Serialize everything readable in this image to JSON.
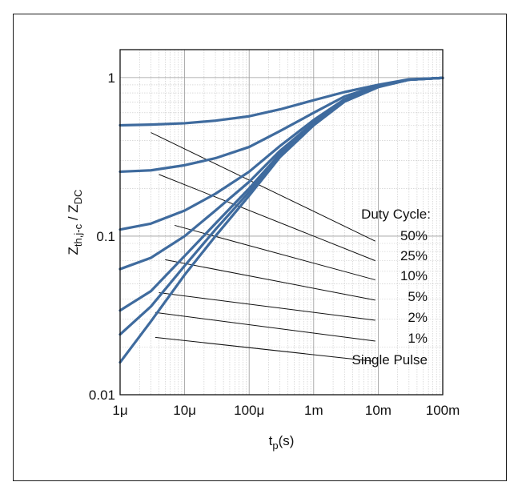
{
  "chart_data": {
    "type": "line",
    "xscale": "log",
    "yscale": "log",
    "xlim": [
      1e-06,
      0.1
    ],
    "ylim": [
      0.01,
      1.5
    ],
    "grid": true,
    "xlabel": {
      "main": "t",
      "sub": "p",
      "suffix": "(s)"
    },
    "ylabel": {
      "z1": "Z",
      "sub1": "th,j-c",
      "sep": " / ",
      "z2": "Z",
      "sub2": "DC"
    },
    "x_ticks": [
      {
        "value": 1e-06,
        "label": "1μ"
      },
      {
        "value": 1e-05,
        "label": "10μ"
      },
      {
        "value": 0.0001,
        "label": "100μ"
      },
      {
        "value": 0.001,
        "label": "1m"
      },
      {
        "value": 0.01,
        "label": "10m"
      },
      {
        "value": 0.1,
        "label": "100m"
      }
    ],
    "y_ticks": [
      {
        "value": 0.01,
        "label": "0.01"
      },
      {
        "value": 0.1,
        "label": "0.1"
      },
      {
        "value": 1,
        "label": "1"
      }
    ],
    "series_color": "#3f6b9e",
    "series": [
      {
        "label": "50%",
        "x": [
          1e-06,
          3e-06,
          1e-05,
          3e-05,
          0.0001,
          0.0003,
          0.001,
          0.003,
          0.01,
          0.03,
          0.1
        ],
        "y": [
          0.5,
          0.505,
          0.515,
          0.535,
          0.57,
          0.63,
          0.72,
          0.81,
          0.9,
          0.975,
          0.995
        ]
      },
      {
        "label": "25%",
        "x": [
          1e-06,
          3e-06,
          1e-05,
          3e-05,
          0.0001,
          0.0003,
          0.001,
          0.003,
          0.01,
          0.03,
          0.1
        ],
        "y": [
          0.255,
          0.26,
          0.28,
          0.31,
          0.365,
          0.46,
          0.6,
          0.76,
          0.89,
          0.97,
          0.995
        ]
      },
      {
        "label": "10%",
        "x": [
          1e-06,
          3e-06,
          1e-05,
          3e-05,
          0.0001,
          0.0003,
          0.001,
          0.003,
          0.01,
          0.03,
          0.1
        ],
        "y": [
          0.11,
          0.12,
          0.145,
          0.185,
          0.255,
          0.37,
          0.54,
          0.73,
          0.88,
          0.97,
          0.995
        ]
      },
      {
        "label": "5%",
        "x": [
          1e-06,
          3e-06,
          1e-05,
          3e-05,
          0.0001,
          0.0003,
          0.001,
          0.003,
          0.01,
          0.03,
          0.1
        ],
        "y": [
          0.062,
          0.073,
          0.1,
          0.145,
          0.22,
          0.345,
          0.52,
          0.72,
          0.875,
          0.97,
          0.995
        ]
      },
      {
        "label": "2%",
        "x": [
          1e-06,
          3e-06,
          1e-05,
          3e-05,
          0.0001,
          0.0003,
          0.001,
          0.003,
          0.01,
          0.03,
          0.1
        ],
        "y": [
          0.034,
          0.045,
          0.075,
          0.12,
          0.2,
          0.33,
          0.51,
          0.715,
          0.875,
          0.97,
          0.995
        ]
      },
      {
        "label": "1%",
        "x": [
          1e-06,
          3e-06,
          1e-05,
          3e-05,
          0.0001,
          0.0003,
          0.001,
          0.003,
          0.01,
          0.03,
          0.1
        ],
        "y": [
          0.024,
          0.036,
          0.065,
          0.11,
          0.19,
          0.325,
          0.505,
          0.71,
          0.875,
          0.97,
          0.995
        ]
      },
      {
        "label": "Single Pulse",
        "x": [
          1e-06,
          3e-06,
          1e-05,
          3e-05,
          0.0001,
          0.0003,
          0.001,
          0.003,
          0.01,
          0.03,
          0.1
        ],
        "y": [
          0.016,
          0.029,
          0.057,
          0.1,
          0.18,
          0.315,
          0.5,
          0.705,
          0.87,
          0.97,
          0.995
        ]
      }
    ],
    "annotation_title": "Duty Cycle:",
    "leader_lines": [
      {
        "from": [
          3e-06,
          0.45
        ],
        "to": [
          0.009,
          0.093
        ]
      },
      {
        "from": [
          4e-06,
          0.245
        ],
        "to": [
          0.009,
          0.07
        ]
      },
      {
        "from": [
          7e-06,
          0.117
        ],
        "to": [
          0.009,
          0.053
        ]
      },
      {
        "from": [
          5e-06,
          0.071
        ],
        "to": [
          0.009,
          0.0395
        ]
      },
      {
        "from": [
          4e-06,
          0.044
        ],
        "to": [
          0.009,
          0.0295
        ]
      },
      {
        "from": [
          3.5e-06,
          0.033
        ],
        "to": [
          0.009,
          0.0218
        ]
      },
      {
        "from": [
          3.5e-06,
          0.023
        ],
        "to": [
          0.008,
          0.0163
        ]
      }
    ]
  }
}
